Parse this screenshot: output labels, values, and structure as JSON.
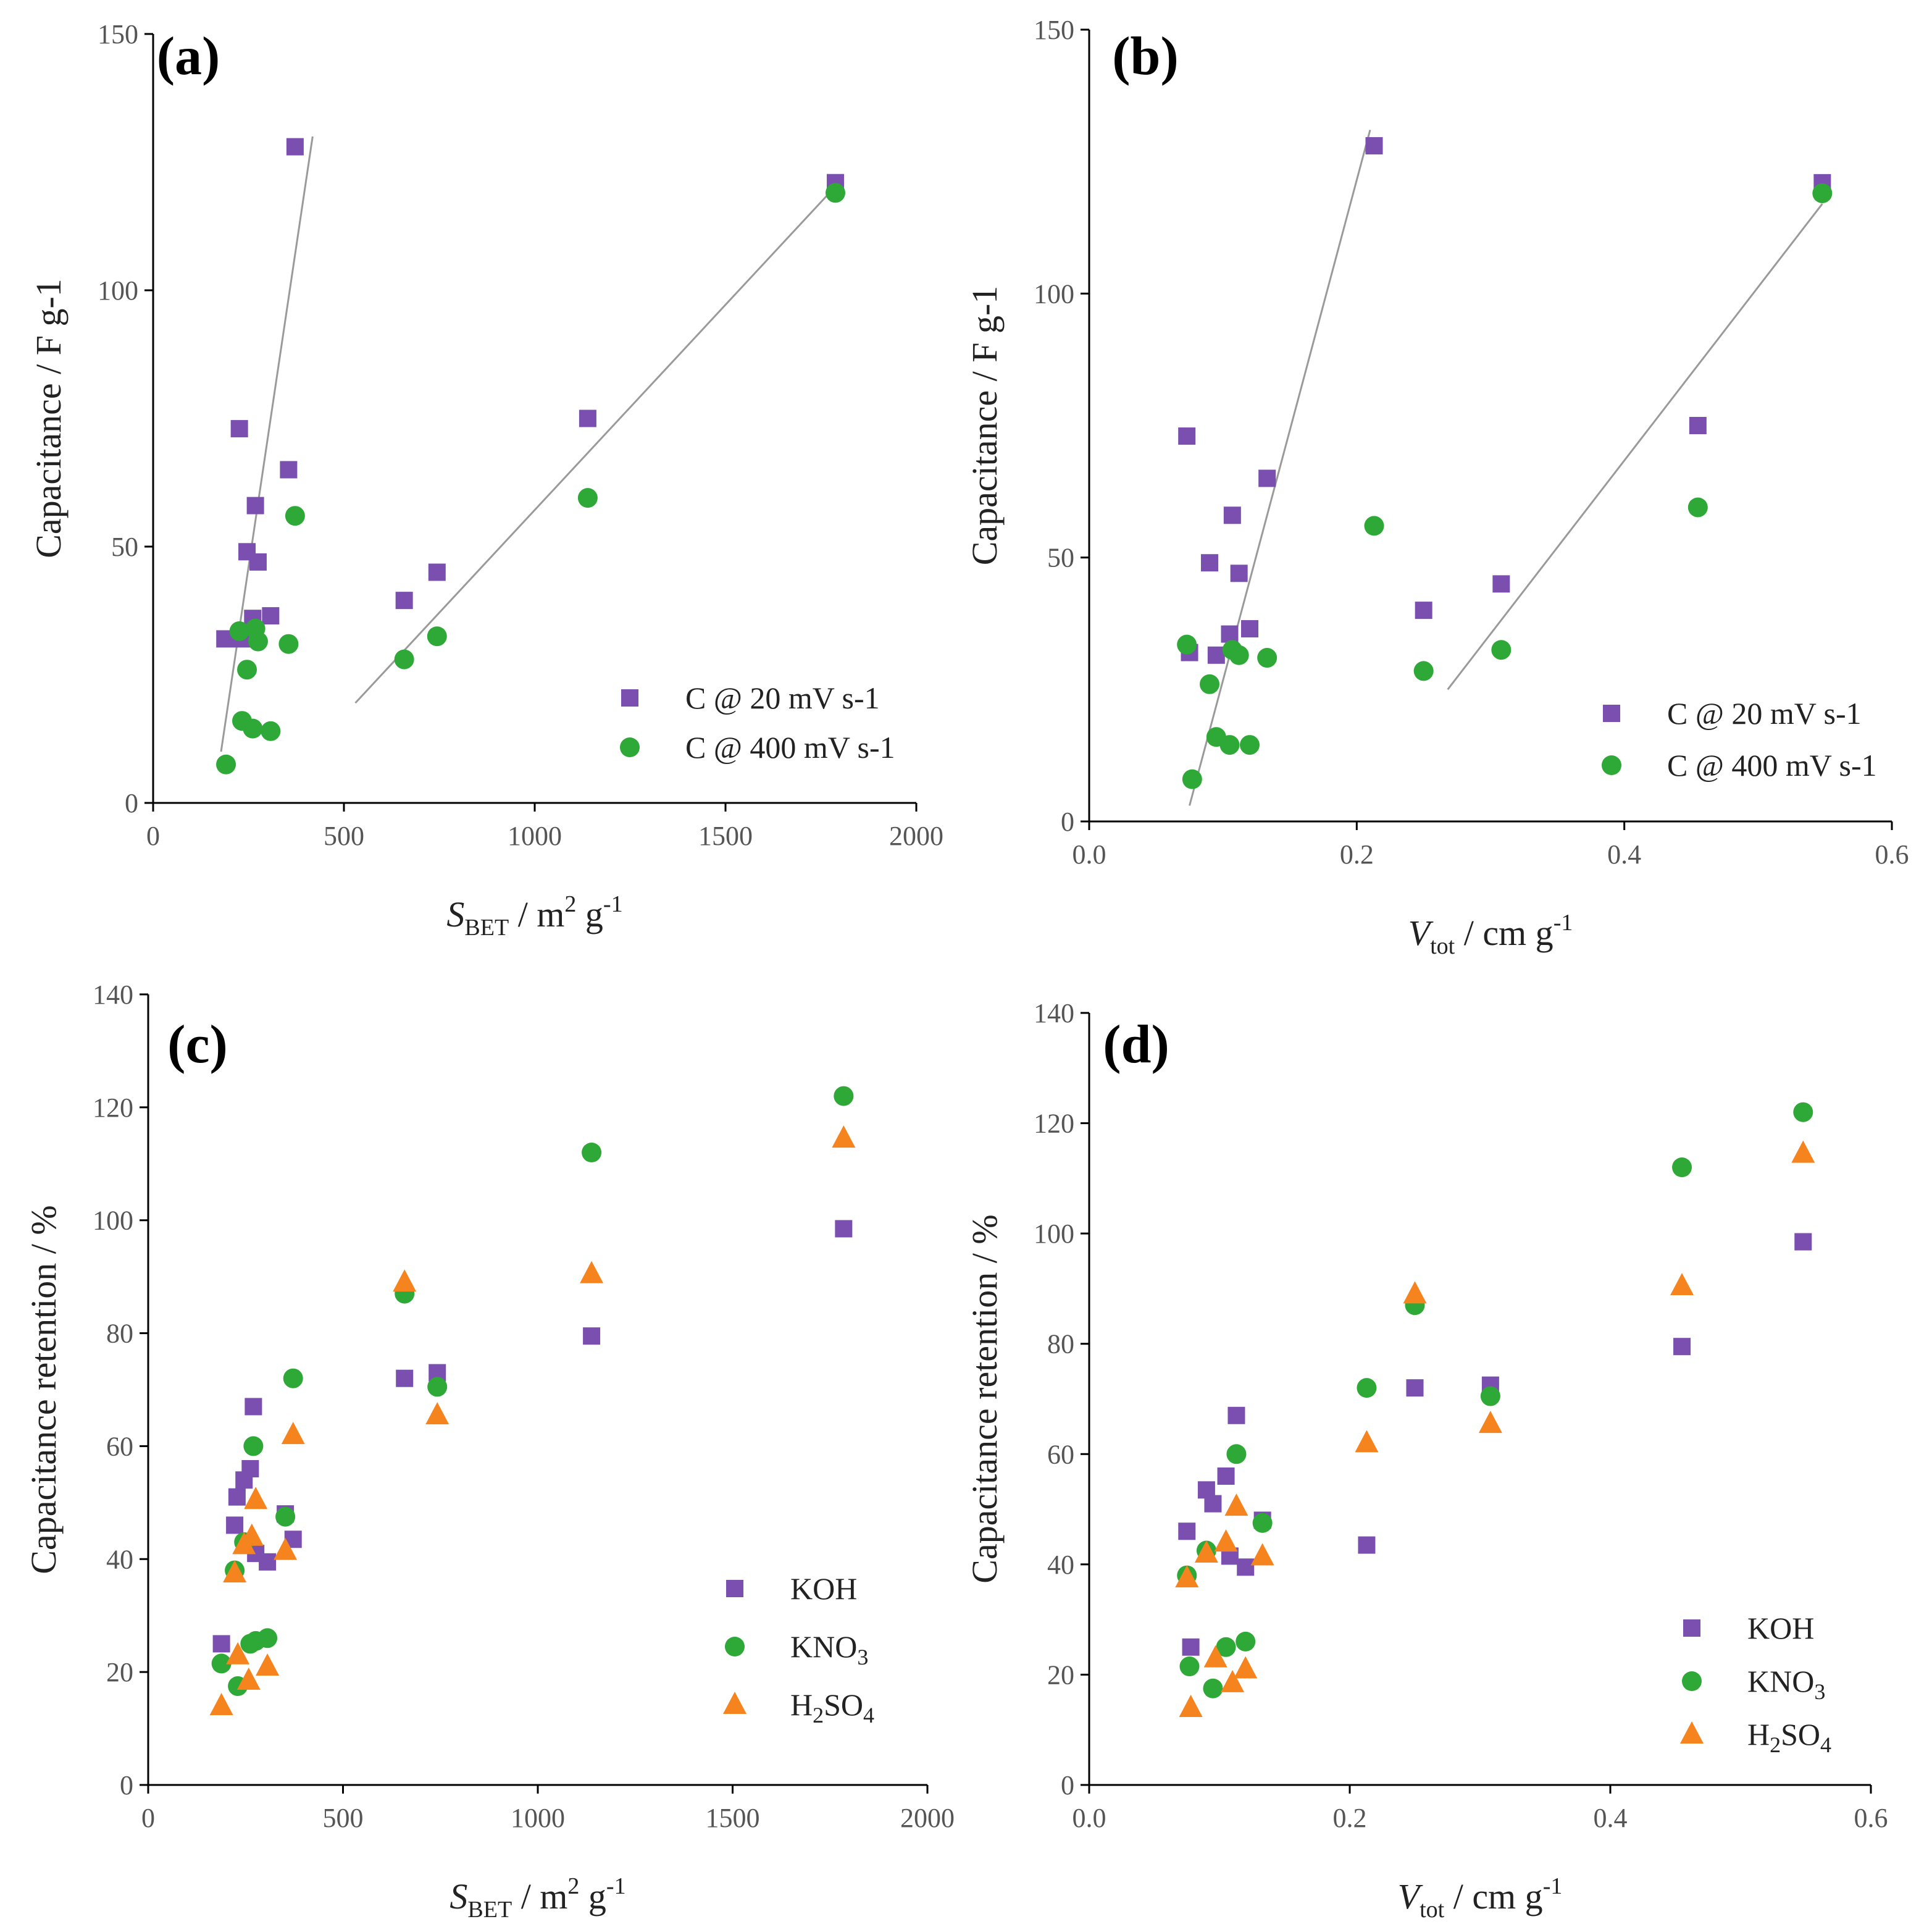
{
  "colors": {
    "purple": "#7b4fb0",
    "green": "#2ea836",
    "orange": "#f5841f",
    "fit_line": "#9a9a9a"
  },
  "chart_data": [
    {
      "id": "a",
      "type": "scatter",
      "panel_label": "(a)",
      "xlabel": {
        "main": "S",
        "sub": "BET",
        "rest": " / m",
        "sup": "2",
        "rest2": " g",
        "sup2": "-1"
      },
      "ylabel": "Capacitance / F g-1",
      "xlim": [
        0,
        2000
      ],
      "ylim": [
        0,
        150
      ],
      "xticks": [
        0,
        500,
        1000,
        1500,
        2000
      ],
      "yticks": [
        0,
        50,
        100,
        150
      ],
      "xtick_labels": [
        "0",
        "500",
        "1000",
        "1500",
        "2000"
      ],
      "ytick_labels": [
        "0",
        "50",
        "100",
        "150"
      ],
      "legend": {
        "position": "bottom-right"
      },
      "series": [
        {
          "name": "C @ 20 mV s-1",
          "marker": "square",
          "color": "#7b4fb0",
          "points": [
            [
              188,
              32
            ],
            [
              226,
              73
            ],
            [
              233,
              32
            ],
            [
              246,
              49
            ],
            [
              261,
              36
            ],
            [
              268,
              58
            ],
            [
              275,
              47
            ],
            [
              308,
              36.5
            ],
            [
              355,
              65
            ],
            [
              372,
              128
            ],
            [
              658,
              39.5
            ],
            [
              744,
              45
            ],
            [
              1139,
              75
            ],
            [
              1788,
              121
            ]
          ]
        },
        {
          "name": "C @ 400 mV s-1",
          "marker": "circle",
          "color": "#2ea836",
          "points": [
            [
              191,
              7.5
            ],
            [
              226,
              33.5
            ],
            [
              233,
              16
            ],
            [
              246,
              26
            ],
            [
              261,
              14.5
            ],
            [
              268,
              34
            ],
            [
              275,
              31.5
            ],
            [
              308,
              14
            ],
            [
              355,
              31
            ],
            [
              372,
              56
            ],
            [
              658,
              28
            ],
            [
              744,
              32.5
            ],
            [
              1139,
              59.5
            ],
            [
              1788,
              119
            ]
          ]
        }
      ],
      "fit_lines": [
        {
          "from": [
            178,
            10
          ],
          "to": [
            418,
            130
          ]
        },
        {
          "from": [
            530,
            19.5
          ],
          "to": [
            1785,
            120
          ]
        }
      ]
    },
    {
      "id": "b",
      "type": "scatter",
      "panel_label": "(b)",
      "xlabel": {
        "main": "V",
        "sub": "tot",
        "rest": " / cm g",
        "sup": "-1",
        "rest2": "",
        "sup2": ""
      },
      "ylabel": "Capacitance / F g-1",
      "xlim": [
        0,
        0.6
      ],
      "ylim": [
        0,
        150
      ],
      "xticks": [
        0,
        0.2,
        0.4,
        0.6
      ],
      "yticks": [
        0,
        50,
        100,
        150
      ],
      "xtick_labels": [
        "0.0",
        "0.2",
        "0.4",
        "0.6"
      ],
      "ytick_labels": [
        "0",
        "50",
        "100",
        "150"
      ],
      "legend": {
        "position": "bottom-right"
      },
      "series": [
        {
          "name": "C @ 20 mV s-1",
          "marker": "square",
          "color": "#7b4fb0",
          "points": [
            [
              0.073,
              73
            ],
            [
              0.075,
              32
            ],
            [
              0.09,
              49
            ],
            [
              0.095,
              31.5
            ],
            [
              0.105,
              35.5
            ],
            [
              0.107,
              58
            ],
            [
              0.112,
              47
            ],
            [
              0.12,
              36.5
            ],
            [
              0.133,
              65
            ],
            [
              0.213,
              128
            ],
            [
              0.25,
              40
            ],
            [
              0.308,
              45
            ],
            [
              0.455,
              75
            ],
            [
              0.548,
              121
            ]
          ]
        },
        {
          "name": "C @ 400 mV s-1",
          "marker": "circle",
          "color": "#2ea836",
          "points": [
            [
              0.073,
              33.5
            ],
            [
              0.077,
              8
            ],
            [
              0.09,
              26
            ],
            [
              0.095,
              16
            ],
            [
              0.105,
              14.5
            ],
            [
              0.107,
              32.5
            ],
            [
              0.112,
              31.5
            ],
            [
              0.12,
              14.5
            ],
            [
              0.133,
              31
            ],
            [
              0.213,
              56
            ],
            [
              0.25,
              28.5
            ],
            [
              0.308,
              32.5
            ],
            [
              0.455,
              59.5
            ],
            [
              0.548,
              119
            ]
          ]
        }
      ],
      "fit_lines": [
        {
          "from": [
            0.075,
            3
          ],
          "to": [
            0.21,
            131
          ]
        },
        {
          "from": [
            0.268,
            25
          ],
          "to": [
            0.548,
            117
          ]
        }
      ]
    },
    {
      "id": "c",
      "type": "scatter",
      "panel_label": "(c)",
      "xlabel": {
        "main": "S",
        "sub": "BET",
        "rest": " / m",
        "sup": "2",
        "rest2": " g",
        "sup2": "-1"
      },
      "ylabel": "Capacitance retention / %",
      "xlim": [
        0,
        2000
      ],
      "ylim": [
        0,
        140
      ],
      "xticks": [
        0,
        500,
        1000,
        1500,
        2000
      ],
      "yticks": [
        0,
        20,
        40,
        60,
        80,
        100,
        120,
        140
      ],
      "xtick_labels": [
        "0",
        "500",
        "1000",
        "1500",
        "2000"
      ],
      "ytick_labels": [
        "0",
        "20",
        "40",
        "60",
        "80",
        "100",
        "120",
        "140"
      ],
      "legend": {
        "position": "bottom-right"
      },
      "series": [
        {
          "name": "KOH",
          "marker": "square",
          "color": "#7b4fb0",
          "points": [
            [
              188,
              25
            ],
            [
              222,
              46
            ],
            [
              228,
              51
            ],
            [
              246,
              54
            ],
            [
              262,
              56
            ],
            [
              270,
              67
            ],
            [
              276,
              41
            ],
            [
              306,
              39.5
            ],
            [
              352,
              48
            ],
            [
              372,
              43.5
            ],
            [
              658,
              72
            ],
            [
              742,
              73
            ],
            [
              1138,
              79.5
            ],
            [
              1785,
              98.5
            ]
          ]
        },
        {
          "name": "KNO3",
          "marker": "circle",
          "color": "#2ea836",
          "points": [
            [
              188,
              21.5
            ],
            [
              222,
              38
            ],
            [
              230,
              17.5
            ],
            [
              246,
              43
            ],
            [
              262,
              25
            ],
            [
              270,
              60
            ],
            [
              276,
              25.5
            ],
            [
              306,
              26
            ],
            [
              352,
              47.5
            ],
            [
              372,
              72
            ],
            [
              658,
              87
            ],
            [
              742,
              70.5
            ],
            [
              1138,
              112
            ],
            [
              1785,
              122
            ]
          ]
        },
        {
          "name": "H2SO4",
          "marker": "triangle",
          "color": "#f5841f",
          "points": [
            [
              188,
              14
            ],
            [
              222,
              37.5
            ],
            [
              230,
              23
            ],
            [
              246,
              42.5
            ],
            [
              258,
              18.5
            ],
            [
              266,
              44
            ],
            [
              276,
              50.5
            ],
            [
              306,
              21
            ],
            [
              352,
              41.5
            ],
            [
              372,
              62
            ],
            [
              658,
              89
            ],
            [
              742,
              65.5
            ],
            [
              1138,
              90.5
            ],
            [
              1785,
              114.5
            ]
          ]
        }
      ],
      "fit_lines": []
    },
    {
      "id": "d",
      "type": "scatter",
      "panel_label": "(d)",
      "xlabel": {
        "main": "V",
        "sub": "tot",
        "rest": " / cm g",
        "sup": "-1",
        "rest2": "",
        "sup2": ""
      },
      "ylabel": "Capacitance retention / %",
      "xlim": [
        0,
        0.6
      ],
      "ylim": [
        0,
        140
      ],
      "xticks": [
        0,
        0.2,
        0.4,
        0.6
      ],
      "yticks": [
        0,
        20,
        40,
        60,
        80,
        100,
        120,
        140
      ],
      "xtick_labels": [
        "0.0",
        "0.2",
        "0.4",
        "0.6"
      ],
      "ytick_labels": [
        "0",
        "20",
        "40",
        "60",
        "80",
        "100",
        "120",
        "140"
      ],
      "legend": {
        "position": "bottom-right"
      },
      "series": [
        {
          "name": "KOH",
          "marker": "square",
          "color": "#7b4fb0",
          "points": [
            [
              0.075,
              46
            ],
            [
              0.078,
              25
            ],
            [
              0.09,
              53.5
            ],
            [
              0.095,
              51
            ],
            [
              0.105,
              56
            ],
            [
              0.108,
              41.5
            ],
            [
              0.113,
              67
            ],
            [
              0.12,
              39.5
            ],
            [
              0.133,
              48
            ],
            [
              0.213,
              43.5
            ],
            [
              0.25,
              72
            ],
            [
              0.308,
              72.5
            ],
            [
              0.455,
              79.5
            ],
            [
              0.548,
              98.5
            ]
          ]
        },
        {
          "name": "KNO3",
          "marker": "circle",
          "color": "#2ea836",
          "points": [
            [
              0.077,
              21.5
            ],
            [
              0.075,
              38
            ],
            [
              0.09,
              42.5
            ],
            [
              0.095,
              17.5
            ],
            [
              0.105,
              25
            ],
            [
              0.113,
              60
            ],
            [
              0.12,
              26
            ],
            [
              0.133,
              47.5
            ],
            [
              0.213,
              72
            ],
            [
              0.25,
              87
            ],
            [
              0.308,
              70.5
            ],
            [
              0.455,
              112
            ],
            [
              0.548,
              122
            ]
          ]
        },
        {
          "name": "H2SO4",
          "marker": "triangle",
          "color": "#f5841f",
          "points": [
            [
              0.075,
              37.5
            ],
            [
              0.078,
              14
            ],
            [
              0.09,
              42
            ],
            [
              0.097,
              23
            ],
            [
              0.105,
              44
            ],
            [
              0.11,
              18.5
            ],
            [
              0.113,
              50.5
            ],
            [
              0.12,
              21
            ],
            [
              0.133,
              41.5
            ],
            [
              0.213,
              62
            ],
            [
              0.25,
              89
            ],
            [
              0.308,
              65.5
            ],
            [
              0.455,
              90.5
            ],
            [
              0.548,
              114.5
            ]
          ]
        }
      ],
      "fit_lines": []
    }
  ]
}
